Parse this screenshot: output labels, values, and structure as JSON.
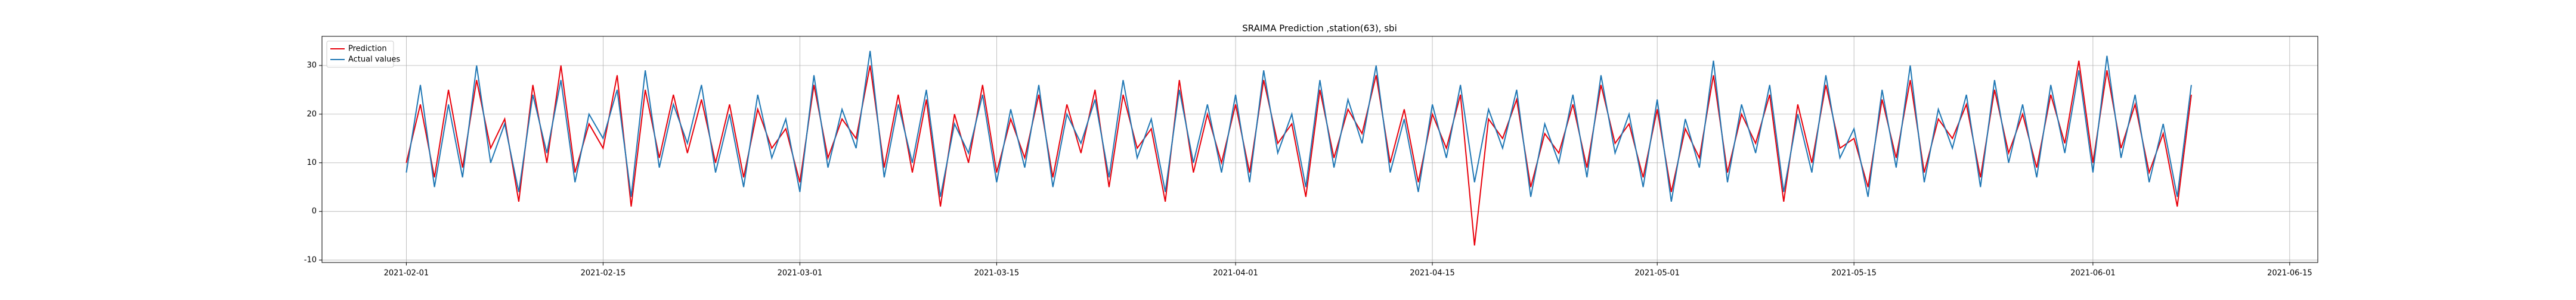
{
  "chart_data": {
    "type": "line",
    "title": "SRAIMA Prediction ,station(63), sbi",
    "x": [
      "2021-02-01",
      "2021-02-02",
      "2021-02-03",
      "2021-02-04",
      "2021-02-05",
      "2021-02-06",
      "2021-02-07",
      "2021-02-08",
      "2021-02-09",
      "2021-02-10",
      "2021-02-11",
      "2021-02-12",
      "2021-02-13",
      "2021-02-14",
      "2021-02-15",
      "2021-02-16",
      "2021-02-17",
      "2021-02-18",
      "2021-02-19",
      "2021-02-20",
      "2021-02-21",
      "2021-02-22",
      "2021-02-23",
      "2021-02-24",
      "2021-02-25",
      "2021-02-26",
      "2021-02-27",
      "2021-02-28",
      "2021-03-01",
      "2021-03-02",
      "2021-03-03",
      "2021-03-04",
      "2021-03-05",
      "2021-03-06",
      "2021-03-07",
      "2021-03-08",
      "2021-03-09",
      "2021-03-10",
      "2021-03-11",
      "2021-03-12",
      "2021-03-13",
      "2021-03-14",
      "2021-03-15",
      "2021-03-16",
      "2021-03-17",
      "2021-03-18",
      "2021-03-19",
      "2021-03-20",
      "2021-03-21",
      "2021-03-22",
      "2021-03-23",
      "2021-03-24",
      "2021-03-25",
      "2021-03-26",
      "2021-03-27",
      "2021-03-28",
      "2021-03-29",
      "2021-03-30",
      "2021-03-31",
      "2021-04-01",
      "2021-04-02",
      "2021-04-03",
      "2021-04-04",
      "2021-04-05",
      "2021-04-06",
      "2021-04-07",
      "2021-04-08",
      "2021-04-09",
      "2021-04-10",
      "2021-04-11",
      "2021-04-12",
      "2021-04-13",
      "2021-04-14",
      "2021-04-15",
      "2021-04-16",
      "2021-04-17",
      "2021-04-18",
      "2021-04-19",
      "2021-04-20",
      "2021-04-21",
      "2021-04-22",
      "2021-04-23",
      "2021-04-24",
      "2021-04-25",
      "2021-04-26",
      "2021-04-27",
      "2021-04-28",
      "2021-04-29",
      "2021-04-30",
      "2021-05-01",
      "2021-05-02",
      "2021-05-03",
      "2021-05-04",
      "2021-05-05",
      "2021-05-06",
      "2021-05-07",
      "2021-05-08",
      "2021-05-09",
      "2021-05-10",
      "2021-05-11",
      "2021-05-12",
      "2021-05-13",
      "2021-05-14",
      "2021-05-15",
      "2021-05-16",
      "2021-05-17",
      "2021-05-18",
      "2021-05-19",
      "2021-05-20",
      "2021-05-21",
      "2021-05-22",
      "2021-05-23",
      "2021-05-24",
      "2021-05-25",
      "2021-05-26",
      "2021-05-27",
      "2021-05-28",
      "2021-05-29",
      "2021-05-30",
      "2021-05-31",
      "2021-06-01",
      "2021-06-02",
      "2021-06-03",
      "2021-06-04",
      "2021-06-05",
      "2021-06-06",
      "2021-06-07",
      "2021-06-08"
    ],
    "series": [
      {
        "name": "Prediction",
        "color": "#e8000b",
        "values": [
          10,
          22,
          7,
          25,
          9,
          27,
          13,
          19,
          2,
          26,
          10,
          30,
          8,
          18,
          13,
          28,
          1,
          25,
          11,
          24,
          12,
          23,
          10,
          22,
          7,
          21,
          13,
          17,
          6,
          26,
          11,
          19,
          15,
          30,
          9,
          24,
          8,
          23,
          1,
          20,
          10,
          26,
          8,
          19,
          11,
          24,
          7,
          22,
          12,
          25,
          5,
          24,
          13,
          17,
          2,
          27,
          8,
          20,
          10,
          22,
          8,
          27,
          14,
          18,
          3,
          25,
          11,
          21,
          16,
          28,
          10,
          21,
          6,
          20,
          13,
          24,
          -7,
          19,
          15,
          23,
          5,
          16,
          12,
          22,
          9,
          26,
          14,
          18,
          7,
          21,
          4,
          17,
          11,
          28,
          8,
          20,
          14,
          24,
          2,
          22,
          10,
          26,
          13,
          15,
          5,
          23,
          11,
          27,
          8,
          19,
          15,
          22,
          7,
          25,
          12,
          20,
          9,
          24,
          14,
          31,
          10,
          29,
          13,
          22,
          8,
          16,
          1,
          24
        ]
      },
      {
        "name": "Actual values",
        "color": "#1f77b4",
        "values": [
          8,
          26,
          5,
          22,
          7,
          30,
          10,
          18,
          4,
          24,
          12,
          27,
          6,
          20,
          15,
          25,
          3,
          29,
          9,
          22,
          14,
          26,
          8,
          20,
          5,
          24,
          11,
          19,
          4,
          28,
          9,
          21,
          13,
          33,
          7,
          22,
          10,
          25,
          3,
          18,
          12,
          24,
          6,
          21,
          9,
          26,
          5,
          20,
          14,
          23,
          7,
          27,
          11,
          19,
          4,
          25,
          10,
          22,
          8,
          24,
          6,
          29,
          12,
          20,
          5,
          27,
          9,
          23,
          14,
          30,
          8,
          19,
          4,
          22,
          11,
          26,
          6,
          21,
          13,
          25,
          3,
          18,
          10,
          24,
          7,
          28,
          12,
          20,
          5,
          23,
          2,
          19,
          9,
          31,
          6,
          22,
          12,
          26,
          4,
          20,
          8,
          28,
          11,
          17,
          3,
          25,
          9,
          30,
          6,
          21,
          13,
          24,
          5,
          27,
          10,
          22,
          7,
          26,
          12,
          29,
          8,
          32,
          11,
          24,
          6,
          18,
          3,
          26
        ]
      }
    ],
    "xlim": [
      "2021-01-26",
      "2021-06-17"
    ],
    "xticks": [
      "2021-02-01",
      "2021-02-15",
      "2021-03-01",
      "2021-03-15",
      "2021-04-01",
      "2021-04-15",
      "2021-05-01",
      "2021-05-15",
      "2021-06-01",
      "2021-06-15"
    ],
    "ylim": [
      -10.5,
      36
    ],
    "yticks": [
      -10,
      0,
      10,
      20,
      30
    ],
    "grid": true,
    "legend": "upper left"
  }
}
